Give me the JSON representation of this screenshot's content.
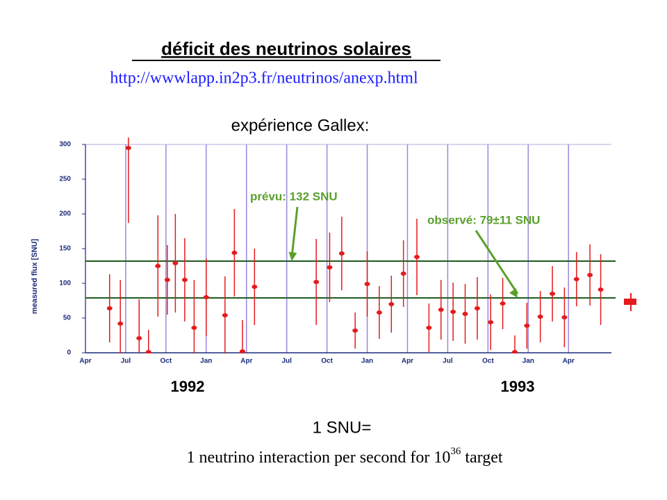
{
  "chart_data": {
    "type": "errorbar",
    "title": "déficit des neutrinos solaires",
    "url": "http://wwwlapp.in2p3.fr/neutrinos/anexp.html",
    "subtitle": "expérience Gallex:",
    "y_label": "measured flux [SNU]",
    "x": [
      1.8,
      2.6,
      3.2,
      4.0,
      4.7,
      5.4,
      6.1,
      6.7,
      7.4,
      8.1,
      9.0,
      10.4,
      11.1,
      11.7,
      12.6,
      17.2,
      18.2,
      19.1,
      20.1,
      21.0,
      21.9,
      22.8,
      23.7,
      24.7,
      25.6,
      26.5,
      27.4,
      28.3,
      29.2,
      30.2,
      31.1,
      32.0,
      32.9,
      33.9,
      34.8,
      35.7,
      36.6,
      37.6,
      38.4
    ],
    "values": [
      64,
      42,
      295,
      21,
      1,
      125,
      105,
      129,
      105,
      36,
      80,
      54,
      144,
      2,
      95,
      102,
      123,
      143,
      32,
      99,
      58,
      70,
      114,
      138,
      36,
      62,
      59,
      56,
      64,
      44,
      71,
      1,
      39,
      52,
      85,
      51,
      106,
      112,
      91
    ],
    "errors": [
      49,
      63,
      108,
      56,
      32,
      73,
      50,
      71,
      60,
      69,
      56,
      56,
      63,
      45,
      55,
      62,
      50,
      53,
      26,
      47,
      38,
      41,
      48,
      55,
      35,
      43,
      42,
      43,
      45,
      40,
      37,
      24,
      33,
      37,
      40,
      43,
      39,
      44,
      51
    ],
    "color": "#e41a1c",
    "xlim": [
      0,
      39.2
    ],
    "xticks": [
      {
        "value": 0,
        "label": "Apr"
      },
      {
        "value": 3,
        "label": "Jul"
      },
      {
        "value": 6,
        "label": "Oct"
      },
      {
        "value": 9,
        "label": "Jan"
      },
      {
        "value": 12,
        "label": "Apr"
      },
      {
        "value": 15,
        "label": "Jul"
      },
      {
        "value": 18,
        "label": "Oct"
      },
      {
        "value": 21,
        "label": "Jan"
      },
      {
        "value": 24,
        "label": "Apr"
      },
      {
        "value": 27,
        "label": "Jul"
      },
      {
        "value": 30,
        "label": "Oct"
      },
      {
        "value": 33,
        "label": "Jan"
      },
      {
        "value": 36,
        "label": "Apr"
      }
    ],
    "ylim": [
      0,
      300
    ],
    "yticks": [
      0,
      50,
      100,
      150,
      200,
      250,
      300
    ],
    "grid": true,
    "years": [
      "1992",
      "1993"
    ],
    "reference_lines": [
      {
        "value": 132,
        "label": "prévu: 132 SNU"
      },
      {
        "value": 79,
        "label": "observé: 79±11 SNU"
      }
    ],
    "note": {
      "definition": "1 SNU=",
      "text": "1 neutrino interaction per second for 10",
      "exponent": "36",
      "suffix": "target"
    }
  }
}
